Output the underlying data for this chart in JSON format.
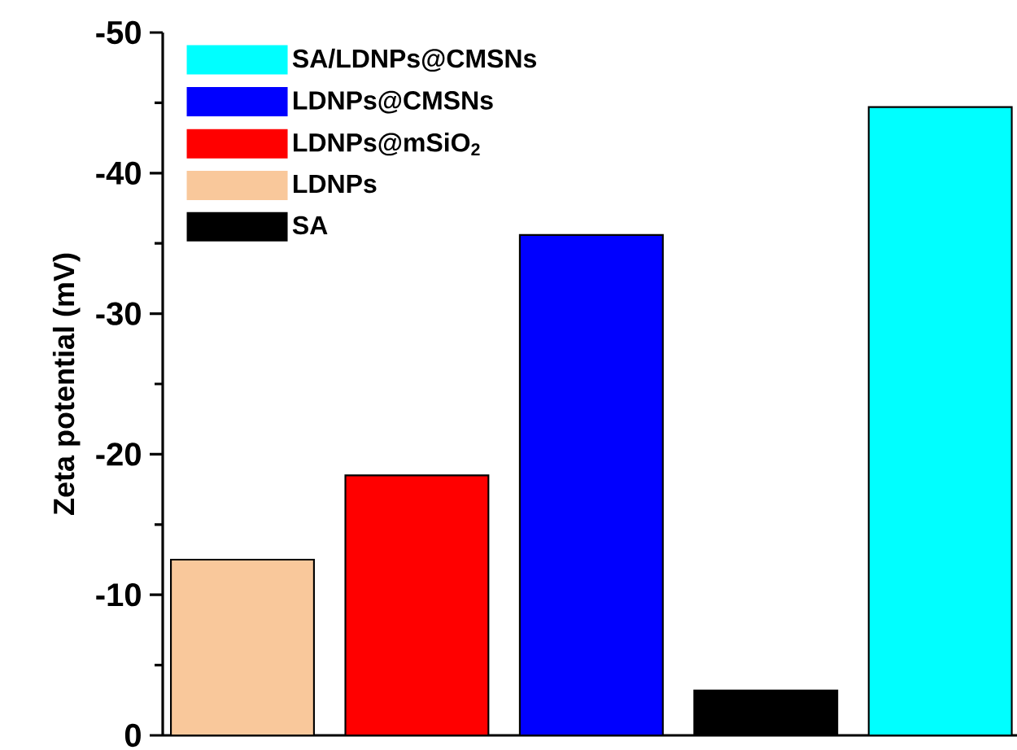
{
  "chart_data": {
    "type": "bar",
    "ylabel": "Zeta potential (mV)",
    "categories": [
      null,
      null,
      null,
      null,
      null
    ],
    "series": [
      {
        "name": "SA/LDNPs@CMSNs",
        "color": "#00ffff",
        "values": [
          null,
          null,
          null,
          null,
          -44.7
        ]
      },
      {
        "name": "LDNPs@CMSNs",
        "color": "#0000ff",
        "values": [
          null,
          null,
          -35.6,
          null,
          null
        ]
      },
      {
        "name": "LDNPs@mSiO$_{2}$",
        "color": "#ff0000",
        "values": [
          null,
          -18.5,
          null,
          null,
          null
        ]
      },
      {
        "name": "LDNPs",
        "color": "#f9c89b",
        "values": [
          -12.5,
          null,
          null,
          null,
          null
        ]
      },
      {
        "name": "SA",
        "color": "#000000",
        "values": [
          null,
          null,
          null,
          -3.2,
          null
        ]
      }
    ],
    "ylim": [
      0,
      -50
    ],
    "yticks": [
      0,
      -10,
      -20,
      -30,
      -40,
      -50
    ],
    "legend": "top left"
  }
}
